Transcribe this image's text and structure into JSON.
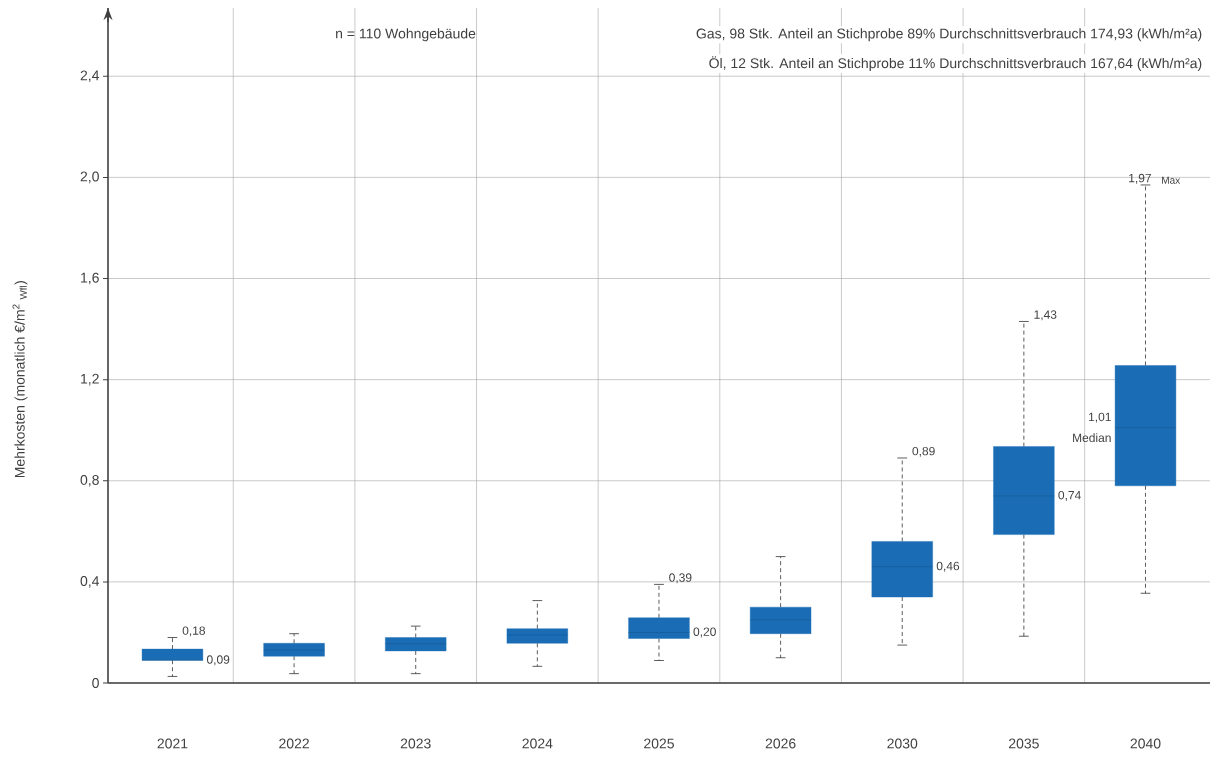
{
  "chart_data": {
    "type": "box",
    "title": "n = 110 Wohngebäude",
    "ylabel": "Mehrkosten (monatlich €/m$^{2}$ $_{Wfl}$)",
    "categories": [
      "2021",
      "2022",
      "2023",
      "2024",
      "2025",
      "2026",
      "2030",
      "2035",
      "2040"
    ],
    "color": "#1a6db5",
    "boxes": [
      {
        "low": 0.026,
        "q1": 0.09,
        "median": 0.09,
        "q3": 0.134,
        "high": 0.18
      },
      {
        "low": 0.037,
        "q1": 0.106,
        "median": 0.13,
        "q3": 0.157,
        "high": 0.195
      },
      {
        "low": 0.037,
        "q1": 0.127,
        "median": 0.155,
        "q3": 0.18,
        "high": 0.225
      },
      {
        "low": 0.066,
        "q1": 0.157,
        "median": 0.19,
        "q3": 0.215,
        "high": 0.326
      },
      {
        "low": 0.089,
        "q1": 0.176,
        "median": 0.2,
        "q3": 0.258,
        "high": 0.39
      },
      {
        "low": 0.1,
        "q1": 0.195,
        "median": 0.25,
        "q3": 0.3,
        "high": 0.5
      },
      {
        "low": 0.15,
        "q1": 0.34,
        "median": 0.46,
        "q3": 0.56,
        "high": 0.89
      },
      {
        "low": 0.185,
        "q1": 0.587,
        "median": 0.74,
        "q3": 0.935,
        "high": 1.43
      },
      {
        "low": 0.355,
        "q1": 0.78,
        "median": 1.01,
        "q3": 1.256,
        "high": 1.97
      }
    ],
    "ylim": [
      0,
      2.67
    ],
    "yticks": [
      0,
      {
        "value": 0.4,
        "label": "0,4"
      },
      {
        "value": 0.8,
        "label": "0,8"
      },
      {
        "value": 1.2,
        "label": "1,2"
      },
      {
        "value": 1.6,
        "label": "1,6"
      },
      {
        "value": 2.0,
        "label": "2,0"
      },
      {
        "value": 2.4,
        "label": "2,4"
      }
    ],
    "grid": true,
    "annotations": [
      "Gas, 98 Stk. Anteil an Stichprobe 89% Durchschnittsverbrauch 174,93 (kWh/m²a)",
      "Öl, 12 Stk. Anteil an Stichprobe 11% Durchschnittsverbrauch 167,64 (kWh/m²a)",
      {
        "text": "0,18",
        "x": "2021",
        "y": 0.18
      },
      {
        "text": "0,09",
        "x": "2021",
        "y": 0.09
      },
      {
        "text": "0,39",
        "x": "2025",
        "y": 0.39
      },
      {
        "text": "0,20",
        "x": "2025",
        "y": 0.2
      },
      {
        "text": "0,89",
        "x": "2030",
        "y": 0.89
      },
      {
        "text": "0,46",
        "x": "2030",
        "y": 0.46
      },
      {
        "text": "1,43",
        "x": "2035",
        "y": 1.43
      },
      {
        "text": "0,74",
        "x": "2035",
        "y": 0.74
      },
      {
        "text": "1,01",
        "x": "2040",
        "y": 1.01
      },
      {
        "text": "Median",
        "x": "2040",
        "y": 1.01
      },
      {
        "text": "1,97",
        "x": "2040",
        "y": 1.97
      },
      {
        "text": "Max",
        "x": "2040",
        "y": 1.97
      }
    ]
  }
}
